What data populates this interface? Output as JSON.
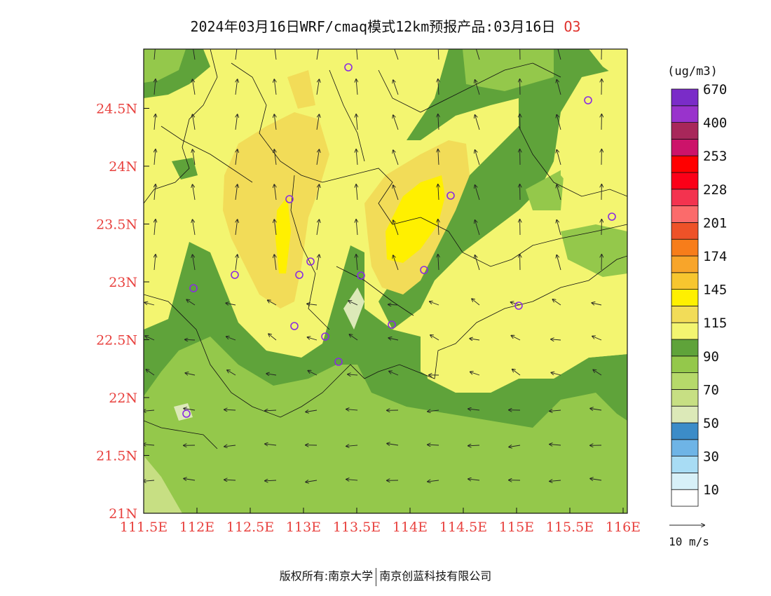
{
  "header": {
    "title": "2024年03月16日WRF/cmaq模式12km预报产品:03月16日",
    "species": "O3"
  },
  "map": {
    "lon_ticks": [
      "111.5E",
      "112E",
      "112.5E",
      "113E",
      "113.5E",
      "114E",
      "114.5E",
      "115E",
      "115.5E",
      "116E"
    ],
    "lat_ticks": [
      "21N",
      "21.5N",
      "22N",
      "22.5N",
      "23N",
      "23.5N",
      "24N",
      "24.5N"
    ],
    "axis_label_color": "#e8423f"
  },
  "legend": {
    "unit": "(ug/m3)",
    "labels": [
      "10",
      "30",
      "50",
      "70",
      "90",
      "115",
      "145",
      "174",
      "201",
      "228",
      "253",
      "400",
      "670"
    ],
    "colors": [
      "#ffffff",
      "#d7f0f8",
      "#a8dcf4",
      "#6eb4e6",
      "#3c8cc8",
      "#dce9b8",
      "#c7df83",
      "#b6d96a",
      "#94c84b",
      "#5fa33a",
      "#f3f570",
      "#f2dc58",
      "#fff000",
      "#f7c62f",
      "#f8a52a",
      "#f77d1a",
      "#ee5228",
      "#fb6b6b",
      "#f3334f",
      "#fb0018",
      "#ff0000",
      "#cc136a",
      "#a8275a",
      "#9933cc",
      "#7a2cc8"
    ],
    "wind_ref": "10 m/s"
  },
  "footer": {
    "copyright": "版权所有:南京大学",
    "company": "南京创蓝科技有限公司"
  }
}
